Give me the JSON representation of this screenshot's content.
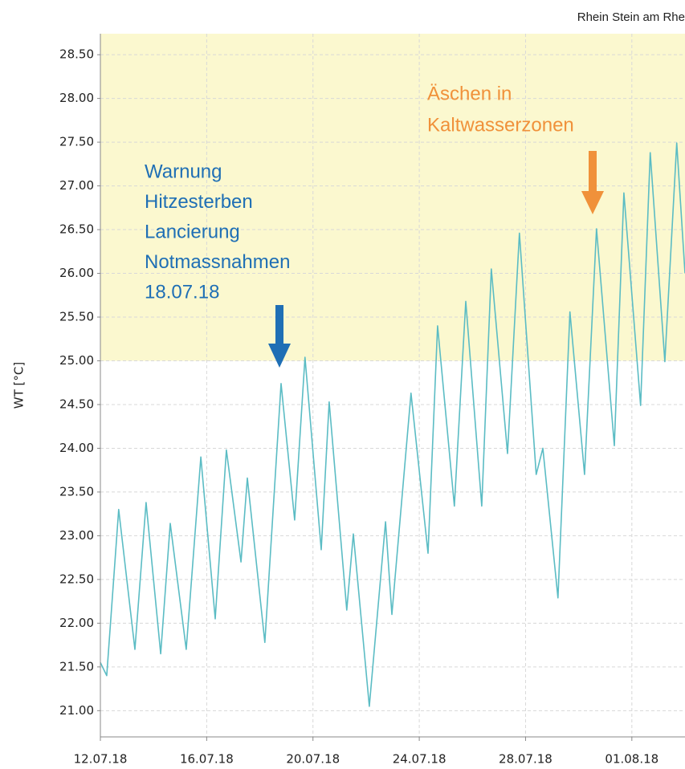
{
  "chart_data": {
    "type": "line",
    "title": "Rhein Stein am Rhe",
    "y_label": "WT [°C]",
    "xlim": [
      0,
      22
    ],
    "ylim": [
      20.7,
      28.74
    ],
    "xticks": [
      {
        "value": 0,
        "label": "12.07.18"
      },
      {
        "value": 4,
        "label": "16.07.18"
      },
      {
        "value": 8,
        "label": "20.07.18"
      },
      {
        "value": 12,
        "label": "24.07.18"
      },
      {
        "value": 16,
        "label": "28.07.18"
      },
      {
        "value": 20,
        "label": "01.08.18"
      }
    ],
    "yticks": [
      {
        "value": 21,
        "label": "21.00"
      },
      {
        "value": 21.5,
        "label": "21.50"
      },
      {
        "value": 22,
        "label": "22.00"
      },
      {
        "value": 22.5,
        "label": "22.50"
      },
      {
        "value": 23,
        "label": "23.00"
      },
      {
        "value": 23.5,
        "label": "23.50"
      },
      {
        "value": 24,
        "label": "24.00"
      },
      {
        "value": 24.5,
        "label": "24.50"
      },
      {
        "value": 25,
        "label": "25.00"
      },
      {
        "value": 25.5,
        "label": "25.50"
      },
      {
        "value": 26,
        "label": "26.00"
      },
      {
        "value": 26.5,
        "label": "26.50"
      },
      {
        "value": 27,
        "label": "27.00"
      },
      {
        "value": 27.5,
        "label": "27.50"
      },
      {
        "value": 28,
        "label": "28.00"
      },
      {
        "value": 28.5,
        "label": "28.50"
      }
    ],
    "grid": true,
    "highlight_above": 25,
    "highlight_color": "#fbf8cf",
    "annotations": [
      {
        "lines": [
          "Warnung",
          "Hitzesterben",
          "Lancierung",
          "Notmassnahmen",
          "18.07.18"
        ],
        "color": "#1f6fb5"
      },
      {
        "lines": [
          "Äschen in",
          "Kaltwasserzonen"
        ],
        "color": "#f0913a"
      }
    ],
    "series": [
      {
        "name": "WT",
        "color": "#5bbcc4",
        "x": [
          0,
          0.24,
          0.69,
          1.3,
          1.72,
          2.27,
          2.63,
          3.23,
          3.78,
          4.32,
          4.74,
          5.29,
          5.53,
          6.19,
          6.8,
          7.31,
          7.7,
          8.31,
          8.61,
          9.27,
          9.52,
          10.12,
          10.73,
          10.97,
          11.69,
          12.33,
          12.69,
          13.32,
          13.75,
          14.35,
          14.71,
          15.32,
          15.77,
          16.4,
          16.65,
          17.22,
          17.67,
          18.22,
          18.67,
          19.34,
          19.7,
          20.33,
          20.69,
          21.24,
          21.69,
          22
        ],
        "values": [
          21.55,
          21.4,
          23.3,
          21.7,
          23.38,
          21.65,
          23.14,
          21.7,
          23.9,
          22.05,
          23.98,
          22.7,
          23.66,
          21.78,
          24.74,
          23.18,
          25.04,
          22.84,
          24.53,
          22.15,
          23.02,
          21.05,
          23.16,
          22.1,
          24.63,
          22.8,
          25.4,
          23.34,
          25.68,
          23.34,
          26.05,
          23.94,
          26.46,
          23.7,
          24.0,
          22.29,
          25.56,
          23.7,
          26.51,
          24.03,
          26.92,
          24.49,
          27.38,
          24.99,
          27.49,
          26.0
        ]
      }
    ]
  }
}
